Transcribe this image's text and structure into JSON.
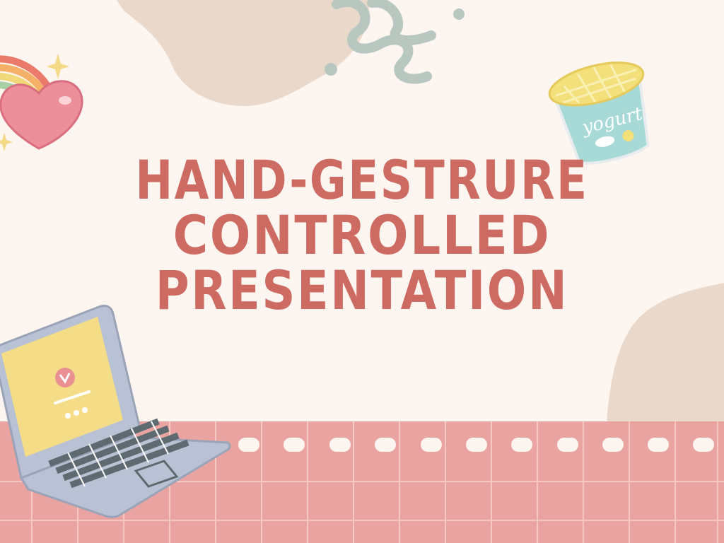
{
  "slide": {
    "title_lines": [
      "HAND-GESTRURE",
      "CONTROLLED",
      "PRESENTATION"
    ],
    "yogurt_label": "yogurt"
  },
  "colors": {
    "background": "#fdf5ef",
    "title": "#cd6a62",
    "band": "#e9a3a0",
    "band_grid": "#f7c7c2",
    "blob": "#ead9cb",
    "squiggle": "#b8c8c0"
  },
  "icons": [
    "heart-icon",
    "rainbow-icon",
    "sparkle-icon",
    "yogurt-cup-icon",
    "laptop-icon",
    "squiggle-icon"
  ]
}
